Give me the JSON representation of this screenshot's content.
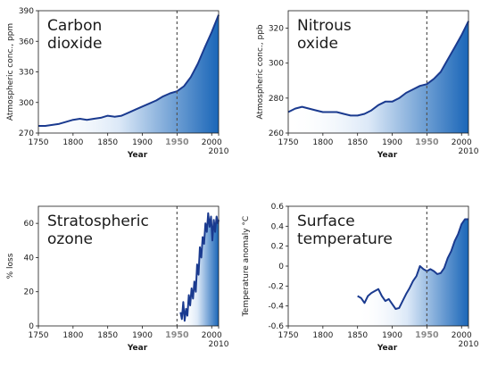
{
  "chart_data": [
    {
      "type": "area",
      "title_lines": [
        "Carbon",
        "dioxide"
      ],
      "xlabel": "Year",
      "ylabel": "Atmospheric conc., ppm",
      "xlim": [
        1750,
        2010
      ],
      "ylim": [
        270,
        390
      ],
      "xticks": [
        "1750",
        "1800",
        "1850",
        "1900",
        "1950",
        "2000"
      ],
      "xtick_end_label": "2010",
      "yticks": [
        "270",
        "300",
        "330",
        "360",
        "390"
      ],
      "marker_year": 1950,
      "x": [
        1750,
        1760,
        1770,
        1780,
        1790,
        1800,
        1810,
        1820,
        1830,
        1840,
        1850,
        1860,
        1870,
        1880,
        1890,
        1900,
        1910,
        1920,
        1930,
        1940,
        1950,
        1960,
        1970,
        1980,
        1990,
        2000,
        2010
      ],
      "values": [
        277,
        277,
        278,
        279,
        281,
        283,
        284,
        283,
        284,
        285,
        287,
        286,
        287,
        290,
        293,
        296,
        299,
        302,
        306,
        309,
        311,
        316,
        325,
        338,
        354,
        369,
        386
      ]
    },
    {
      "type": "area",
      "title_lines": [
        "Nitrous",
        "oxide"
      ],
      "xlabel": "Year",
      "ylabel": "Atmospheric conc., ppb",
      "xlim": [
        1750,
        2010
      ],
      "ylim": [
        260,
        330
      ],
      "xticks": [
        "1750",
        "1800",
        "1850",
        "1900",
        "1950",
        "2000"
      ],
      "xtick_end_label": "2010",
      "yticks": [
        "260",
        "280",
        "300",
        "320"
      ],
      "marker_year": 1950,
      "x": [
        1750,
        1760,
        1770,
        1780,
        1790,
        1800,
        1810,
        1820,
        1830,
        1840,
        1850,
        1860,
        1870,
        1880,
        1890,
        1900,
        1910,
        1920,
        1930,
        1940,
        1950,
        1960,
        1970,
        1980,
        1990,
        2000,
        2010
      ],
      "values": [
        272,
        274,
        275,
        274,
        273,
        272,
        272,
        272,
        271,
        270,
        270,
        271,
        273,
        276,
        278,
        278,
        280,
        283,
        285,
        287,
        288,
        291,
        295,
        302,
        309,
        316,
        324
      ]
    },
    {
      "type": "area",
      "title_lines": [
        "Stratospheric",
        "ozone"
      ],
      "xlabel": "Year",
      "ylabel": "% loss",
      "xlim": [
        1750,
        2010
      ],
      "ylim": [
        0,
        70
      ],
      "xticks": [
        "1750",
        "1800",
        "1850",
        "1900",
        "1950",
        "2000"
      ],
      "xtick_end_label": "2010",
      "yticks": [
        "0",
        "20",
        "40",
        "60"
      ],
      "marker_year": 1950,
      "x": [
        1955,
        1957,
        1959,
        1961,
        1963,
        1965,
        1967,
        1969,
        1971,
        1973,
        1975,
        1977,
        1979,
        1981,
        1983,
        1985,
        1987,
        1989,
        1991,
        1993,
        1995,
        1997,
        1999,
        2001,
        2003,
        2005,
        2007,
        2009,
        2010
      ],
      "values": [
        8,
        4,
        14,
        3,
        10,
        6,
        18,
        12,
        22,
        16,
        26,
        20,
        36,
        30,
        46,
        40,
        52,
        48,
        60,
        55,
        66,
        58,
        64,
        50,
        62,
        55,
        64,
        60,
        62
      ]
    },
    {
      "type": "area",
      "title_lines": [
        "Surface",
        "temperature"
      ],
      "xlabel": "Year",
      "ylabel": "Temperature anomaly °C",
      "xlim": [
        1750,
        2010
      ],
      "ylim": [
        -0.6,
        0.6
      ],
      "xticks": [
        "1750",
        "1800",
        "1850",
        "1900",
        "1950",
        "2000"
      ],
      "xtick_end_label": "2010",
      "yticks": [
        "-0.6",
        "-0.4",
        "-0.2",
        "0",
        "0.2",
        "0.4",
        "0.6"
      ],
      "marker_year": 1950,
      "x": [
        1850,
        1855,
        1860,
        1865,
        1870,
        1875,
        1880,
        1885,
        1890,
        1895,
        1900,
        1905,
        1910,
        1915,
        1920,
        1925,
        1930,
        1935,
        1940,
        1945,
        1950,
        1955,
        1960,
        1965,
        1970,
        1975,
        1980,
        1985,
        1990,
        1995,
        2000,
        2005,
        2010
      ],
      "values": [
        -0.3,
        -0.32,
        -0.37,
        -0.3,
        -0.27,
        -0.25,
        -0.23,
        -0.3,
        -0.35,
        -0.33,
        -0.38,
        -0.43,
        -0.42,
        -0.35,
        -0.28,
        -0.22,
        -0.15,
        -0.1,
        0.0,
        -0.03,
        -0.05,
        -0.03,
        -0.05,
        -0.08,
        -0.07,
        -0.02,
        0.08,
        0.15,
        0.25,
        0.32,
        0.42,
        0.47,
        0.47
      ]
    }
  ]
}
